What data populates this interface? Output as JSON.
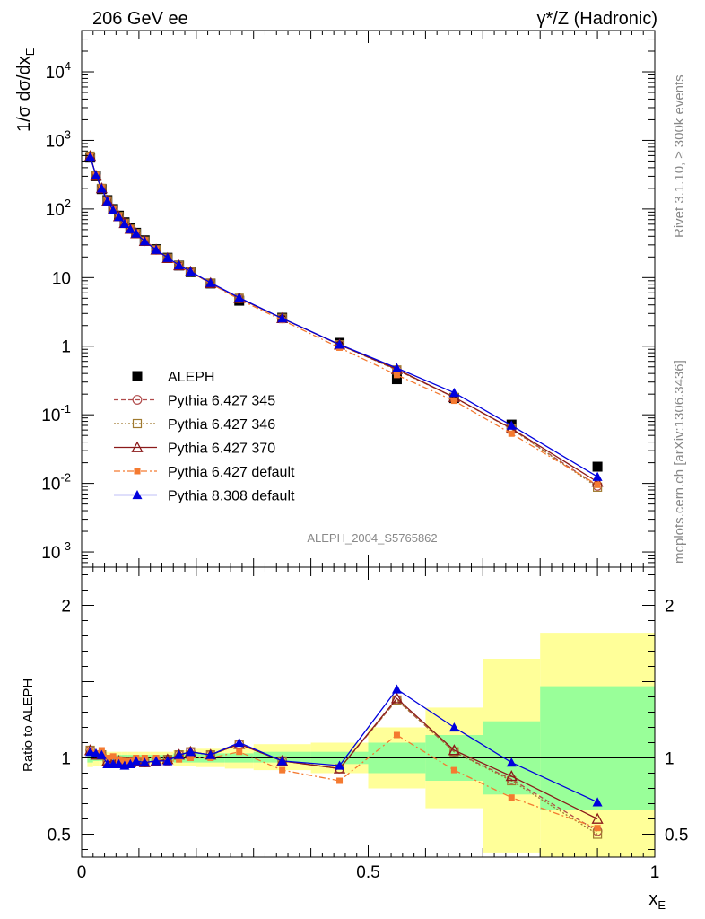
{
  "header": {
    "left_title": "206 GeV ee",
    "right_title": "γ*/Z (Hadronic)"
  },
  "side_labels": {
    "rivet": "Rivet 3.1.10, ≥ 300k events",
    "mcplots": "mcplots.cern.ch [arXiv:1306.3436]"
  },
  "chart_data": [
    {
      "type": "line",
      "panel": "main",
      "ylabel": "1/σ dσ/dx_E",
      "yscale": "log",
      "ylim": [
        0.0006,
        40000
      ],
      "xlim": [
        0,
        1
      ],
      "y_ticks": [
        {
          "v": 0.001,
          "label": "10^-3"
        },
        {
          "v": 0.01,
          "label": "10^-2"
        },
        {
          "v": 0.1,
          "label": "10^-1"
        },
        {
          "v": 1,
          "label": "1"
        },
        {
          "v": 10,
          "label": "10"
        },
        {
          "v": 100,
          "label": "10^2"
        },
        {
          "v": 1000,
          "label": "10^3"
        },
        {
          "v": 10000,
          "label": "10^4"
        }
      ],
      "watermark": "ALEPH_2004_S5765862",
      "x": [
        0.015,
        0.025,
        0.035,
        0.045,
        0.055,
        0.065,
        0.075,
        0.085,
        0.095,
        0.11,
        0.13,
        0.15,
        0.17,
        0.19,
        0.225,
        0.275,
        0.35,
        0.45,
        0.55,
        0.65,
        0.75,
        0.9
      ],
      "series": [
        {
          "name": "ALEPH",
          "color": "#000000",
          "marker": "square-filled",
          "line": "none",
          "values": [
            560,
            300,
            195,
            135,
            100,
            80,
            64,
            53,
            45,
            35,
            26,
            19.5,
            15,
            12,
            8.2,
            4.6,
            2.6,
            1.12,
            0.33,
            0.175,
            0.072,
            0.0175
          ]
        },
        {
          "name": "Pythia 6.427 345",
          "color": "#b04a4a",
          "marker": "circle-open",
          "line": "dashed",
          "values": [
            590,
            305,
            200,
            132,
            98,
            78,
            62,
            51,
            44,
            34,
            25.5,
            19.2,
            15,
            12.2,
            8.3,
            5.0,
            2.55,
            1.05,
            0.45,
            0.18,
            0.062,
            0.0092
          ]
        },
        {
          "name": "Pythia 6.427 346",
          "color": "#a07a30",
          "marker": "square-open",
          "line": "dotted",
          "values": [
            590,
            305,
            200,
            132,
            98,
            78,
            62,
            51,
            44,
            34,
            25.5,
            19.2,
            15,
            12.2,
            8.3,
            5.0,
            2.55,
            1.05,
            0.45,
            0.18,
            0.062,
            0.0088
          ]
        },
        {
          "name": "Pythia 6.427 370",
          "color": "#8b1a1a",
          "marker": "triangle-open",
          "line": "solid",
          "values": [
            590,
            305,
            200,
            132,
            98,
            78,
            62,
            51,
            44,
            34,
            25.5,
            19.2,
            15,
            12.2,
            8.3,
            5.0,
            2.55,
            1.05,
            0.46,
            0.18,
            0.063,
            0.0105
          ]
        },
        {
          "name": "Pythia 6.427 default",
          "color": "#f47a30",
          "marker": "square-filled-small",
          "line": "dashdot",
          "values": [
            585,
            310,
            205,
            135,
            100,
            79,
            63,
            52,
            45,
            35,
            26,
            19,
            14.8,
            12,
            8.2,
            4.8,
            2.4,
            0.95,
            0.38,
            0.16,
            0.053,
            0.0095
          ]
        },
        {
          "name": "Pythia 8.308 default",
          "color": "#0000dd",
          "marker": "triangle-filled",
          "line": "solid",
          "values": [
            580,
            310,
            200,
            130,
            96,
            77,
            61,
            51,
            44,
            34,
            25.5,
            19.5,
            15.2,
            12.3,
            8.4,
            5.1,
            2.55,
            1.06,
            0.48,
            0.21,
            0.07,
            0.0125
          ]
        }
      ]
    },
    {
      "type": "line",
      "panel": "ratio",
      "ylabel": "Ratio to ALEPH",
      "xlabel": "x_E",
      "xlim": [
        0,
        1
      ],
      "ylim": [
        0.35,
        2.25
      ],
      "y_ticks": [
        {
          "v": 0.5,
          "label": "0.5"
        },
        {
          "v": 1,
          "label": "1"
        },
        {
          "v": 2,
          "label": "2"
        }
      ],
      "x_ticks": [
        {
          "v": 0,
          "label": "0"
        },
        {
          "v": 0.5,
          "label": "0.5"
        },
        {
          "v": 1,
          "label": "1"
        }
      ],
      "bands": {
        "edges": [
          0.01,
          0.02,
          0.03,
          0.04,
          0.05,
          0.06,
          0.07,
          0.08,
          0.09,
          0.1,
          0.12,
          0.14,
          0.16,
          0.18,
          0.2,
          0.25,
          0.3,
          0.4,
          0.5,
          0.6,
          0.7,
          0.8,
          1.0
        ],
        "yellow_low": [
          0.94,
          0.95,
          0.95,
          0.96,
          0.96,
          0.96,
          0.96,
          0.96,
          0.96,
          0.96,
          0.96,
          0.96,
          0.95,
          0.95,
          0.94,
          0.93,
          0.92,
          0.9,
          0.8,
          0.67,
          0.38,
          0.35
        ],
        "yellow_high": [
          1.06,
          1.05,
          1.05,
          1.04,
          1.04,
          1.04,
          1.04,
          1.04,
          1.04,
          1.04,
          1.04,
          1.04,
          1.05,
          1.05,
          1.06,
          1.07,
          1.09,
          1.1,
          1.2,
          1.33,
          1.65,
          1.82
        ],
        "green_low": [
          0.97,
          0.98,
          0.98,
          0.98,
          0.98,
          0.98,
          0.98,
          0.98,
          0.98,
          0.98,
          0.98,
          0.98,
          0.97,
          0.97,
          0.97,
          0.97,
          0.97,
          0.96,
          0.9,
          0.85,
          0.76,
          0.66
        ],
        "green_high": [
          1.03,
          1.02,
          1.02,
          1.02,
          1.02,
          1.02,
          1.02,
          1.02,
          1.02,
          1.02,
          1.02,
          1.02,
          1.03,
          1.03,
          1.03,
          1.03,
          1.04,
          1.04,
          1.1,
          1.15,
          1.24,
          1.47
        ]
      },
      "x": [
        0.015,
        0.025,
        0.035,
        0.045,
        0.055,
        0.065,
        0.075,
        0.085,
        0.095,
        0.11,
        0.13,
        0.15,
        0.17,
        0.19,
        0.225,
        0.275,
        0.35,
        0.45,
        0.55,
        0.65,
        0.75,
        0.9
      ],
      "series": [
        {
          "name": "Pythia 6.427 345",
          "color": "#b04a4a",
          "marker": "circle-open",
          "line": "dashed",
          "values": [
            1.05,
            1.02,
            1.02,
            0.98,
            0.98,
            0.98,
            0.97,
            0.97,
            0.98,
            0.97,
            0.98,
            0.99,
            1.02,
            1.04,
            1.02,
            1.09,
            0.98,
            0.93,
            1.38,
            1.04,
            0.86,
            0.52
          ]
        },
        {
          "name": "Pythia 6.427 346",
          "color": "#a07a30",
          "marker": "square-open",
          "line": "dotted",
          "values": [
            1.05,
            1.02,
            1.02,
            0.98,
            0.98,
            0.98,
            0.97,
            0.97,
            0.98,
            0.97,
            0.98,
            0.99,
            1.02,
            1.04,
            1.02,
            1.09,
            0.98,
            0.93,
            1.38,
            1.04,
            0.85,
            0.5
          ]
        },
        {
          "name": "Pythia 6.427 370",
          "color": "#8b1a1a",
          "marker": "triangle-open",
          "line": "solid",
          "values": [
            1.05,
            1.02,
            1.02,
            0.98,
            0.98,
            0.98,
            0.97,
            0.97,
            0.98,
            0.97,
            0.98,
            0.99,
            1.02,
            1.04,
            1.02,
            1.09,
            0.98,
            0.93,
            1.39,
            1.05,
            0.88,
            0.6
          ]
        },
        {
          "name": "Pythia 6.427 default",
          "color": "#f47a30",
          "marker": "square-filled-small",
          "line": "dashdot",
          "values": [
            1.04,
            1.03,
            1.05,
            1.0,
            1.01,
            0.99,
            0.98,
            0.98,
            1.0,
            1.0,
            1.0,
            0.97,
            0.99,
            1.0,
            1.0,
            1.04,
            0.92,
            0.85,
            1.15,
            0.92,
            0.74,
            0.54
          ]
        },
        {
          "name": "Pythia 8.308 default",
          "color": "#0000dd",
          "marker": "triangle-filled",
          "line": "solid",
          "values": [
            1.04,
            1.03,
            1.02,
            0.96,
            0.96,
            0.96,
            0.95,
            0.96,
            0.98,
            0.97,
            0.98,
            0.98,
            1.02,
            1.04,
            1.02,
            1.1,
            0.98,
            0.95,
            1.45,
            1.2,
            0.97,
            0.71
          ]
        }
      ]
    }
  ]
}
